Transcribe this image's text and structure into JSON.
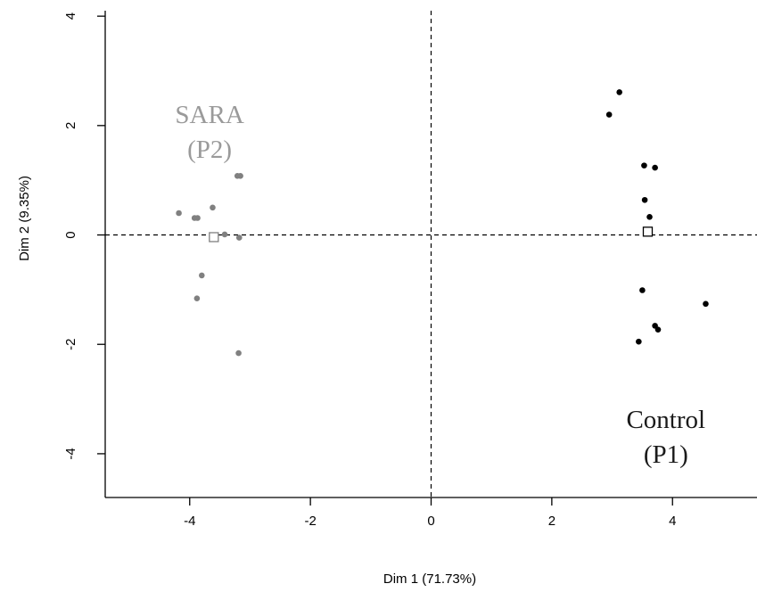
{
  "chart_data": {
    "type": "scatter",
    "title": "",
    "xlabel": "Dim 1 (71.73%)",
    "ylabel": "Dim 2 (9.35%)",
    "xlim": [
      -5.4,
      5.4
    ],
    "ylim": [
      -4.8,
      4.1
    ],
    "x_ticks": [
      "-4",
      "-2",
      "0",
      "2",
      "4"
    ],
    "y_ticks": [
      "-4",
      "-2",
      "0",
      "2",
      "4"
    ],
    "reference_lines": {
      "x": 0,
      "y": 0,
      "style": "dashed"
    },
    "grid": false,
    "series": [
      {
        "color": "#808080",
        "marker": "dot",
        "points": [
          [
            -4.18,
            0.4
          ],
          [
            -3.92,
            0.31
          ],
          [
            -3.87,
            0.31
          ],
          [
            -3.62,
            0.5
          ],
          [
            -3.42,
            0.01
          ],
          [
            -3.21,
            1.08
          ],
          [
            -3.16,
            1.08
          ],
          [
            -3.18,
            -0.05
          ],
          [
            -3.8,
            -0.74
          ],
          [
            -3.88,
            -1.16
          ],
          [
            -3.19,
            -2.16
          ]
        ],
        "centroid": [
          -3.6,
          -0.04
        ]
      },
      {
        "color": "#000000",
        "marker": "dot",
        "points": [
          [
            3.12,
            2.61
          ],
          [
            2.95,
            2.2
          ],
          [
            3.53,
            1.27
          ],
          [
            3.71,
            1.23
          ],
          [
            3.54,
            0.64
          ],
          [
            3.62,
            0.33
          ],
          [
            3.5,
            -1.01
          ],
          [
            4.55,
            -1.26
          ],
          [
            3.71,
            -1.66
          ],
          [
            3.76,
            -1.73
          ],
          [
            3.44,
            -1.95
          ]
        ],
        "centroid": [
          3.59,
          0.06
        ]
      }
    ],
    "annotations": [
      {
        "lines": [
          "SARA",
          "(P2)"
        ],
        "color": "#9a9a9a",
        "x": -3.67,
        "y": 2.05
      },
      {
        "lines": [
          "Control",
          "(P1)"
        ],
        "color": "#1a1a1a",
        "x": 3.89,
        "y": -3.53
      }
    ]
  }
}
